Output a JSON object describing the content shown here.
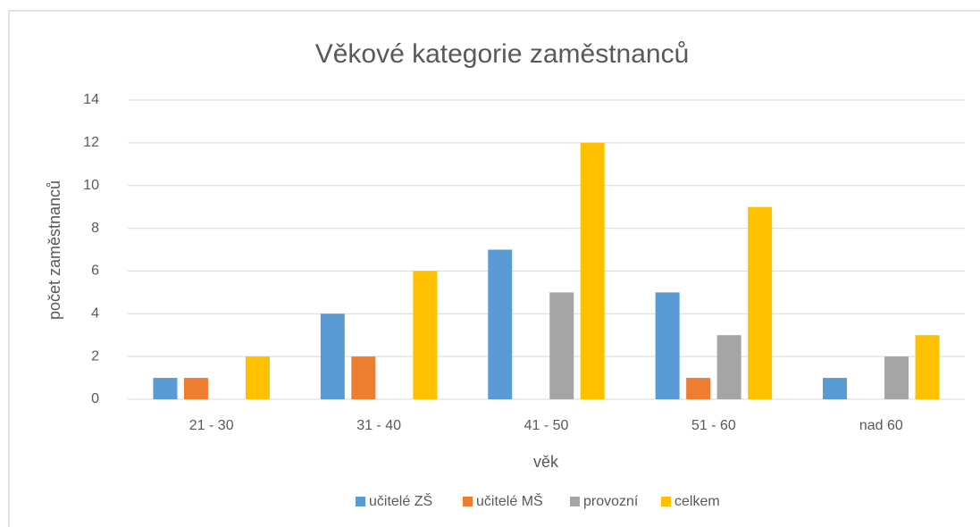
{
  "chart_data": {
    "type": "bar",
    "title": "Věkové kategorie zaměstnanců",
    "x_label": "věk",
    "y_label": "počet zaměstnanců",
    "categories": [
      "21 - 30",
      "31 - 40",
      "41 - 50",
      "51 - 60",
      "nad 60"
    ],
    "series": [
      {
        "name": "učitelé ZŠ",
        "color": "#5b9bd5",
        "values": [
          1,
          4,
          7,
          5,
          1
        ]
      },
      {
        "name": "učitelé MŠ",
        "color": "#ed7d31",
        "values": [
          1,
          2,
          0,
          1,
          0
        ]
      },
      {
        "name": "provozní",
        "color": "#a5a5a5",
        "values": [
          0,
          0,
          5,
          3,
          2
        ]
      },
      {
        "name": "celkem",
        "color": "#ffc000",
        "values": [
          2,
          6,
          12,
          9,
          3
        ]
      }
    ],
    "ylim": [
      0,
      14
    ],
    "yticks": [
      0,
      2,
      4,
      6,
      8,
      10,
      12,
      14
    ],
    "grid": true,
    "legend": "bottom"
  }
}
